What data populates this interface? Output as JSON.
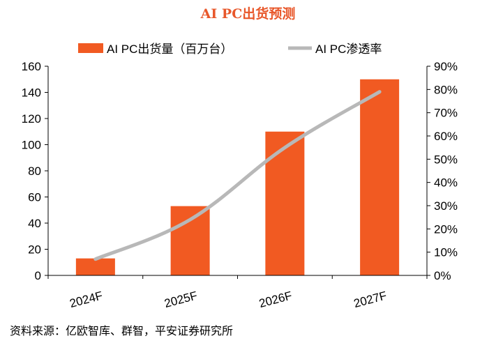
{
  "chart_data": {
    "type": "bar+line",
    "title": "AI PC出货预测",
    "categories": [
      "2024F",
      "2025F",
      "2026F",
      "2027F"
    ],
    "series": [
      {
        "name": "AI PC出货量（百万台）",
        "type": "bar",
        "axis": "left",
        "color": "#f15a22",
        "values": [
          13,
          53,
          110,
          150
        ]
      },
      {
        "name": "AI PC渗透率",
        "type": "line",
        "axis": "right",
        "color": "#b8b8b8",
        "values": [
          7,
          24,
          55,
          79
        ]
      }
    ],
    "y_left": {
      "min": 0,
      "max": 160,
      "step": 20,
      "ticks": [
        "0",
        "20",
        "40",
        "60",
        "80",
        "100",
        "120",
        "140",
        "160"
      ]
    },
    "y_right": {
      "min": 0,
      "max": 90,
      "step": 10,
      "ticks": [
        "0%",
        "10%",
        "20%",
        "30%",
        "40%",
        "50%",
        "60%",
        "70%",
        "80%",
        "90%"
      ]
    },
    "legend_position": "top",
    "grid": false
  },
  "source": "资料来源：亿欧智库、群智，平安证券研究所"
}
